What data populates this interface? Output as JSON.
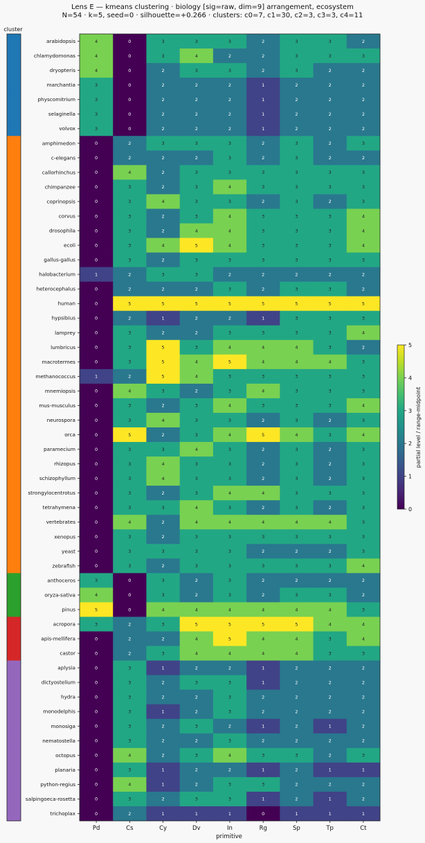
{
  "chart_data": {
    "type": "heatmap",
    "title": "Lens E — kmeans clustering · biology [sig=raw, dim=9] arrangement, ecosystem",
    "subtitle": "N=54 · k=5, seed=0 · silhouette=+0.266 · clusters: c0=7, c1=30, c2=3, c3=3, c4=11",
    "xlabel": "primitive",
    "cluster_label": "cluster",
    "colorbar_label": "partial level / range-midpoint",
    "colorbar_ticks": [
      0,
      1,
      2,
      3,
      4,
      5
    ],
    "vmin": 0,
    "vmax": 5,
    "columns": [
      "Pd",
      "Cs",
      "Cy",
      "Dv",
      "In",
      "Rg",
      "Sp",
      "Tp",
      "Ct"
    ],
    "cluster_colors": [
      "#1f77b4",
      "#ff7f0e",
      "#2ca02c",
      "#d62728",
      "#9467bd"
    ],
    "rows": [
      {
        "name": "arabidopsis",
        "cluster": 0,
        "values": [
          4,
          0,
          3,
          3,
          3,
          2,
          3,
          3,
          2
        ]
      },
      {
        "name": "chlamydomonas",
        "cluster": 0,
        "values": [
          4,
          0,
          3,
          4,
          2,
          2,
          3,
          3,
          3
        ]
      },
      {
        "name": "dryopteris",
        "cluster": 0,
        "values": [
          4,
          0,
          2,
          3,
          3,
          2,
          3,
          2,
          2
        ]
      },
      {
        "name": "marchantia",
        "cluster": 0,
        "values": [
          3,
          0,
          2,
          2,
          2,
          1,
          2,
          2,
          2
        ]
      },
      {
        "name": "physcomitrium",
        "cluster": 0,
        "values": [
          3,
          0,
          2,
          2,
          2,
          1,
          2,
          2,
          2
        ]
      },
      {
        "name": "selaginella",
        "cluster": 0,
        "values": [
          3,
          0,
          2,
          2,
          2,
          1,
          2,
          2,
          2
        ]
      },
      {
        "name": "volvox",
        "cluster": 0,
        "values": [
          3,
          0,
          2,
          2,
          2,
          1,
          2,
          2,
          2
        ]
      },
      {
        "name": "amphimedon",
        "cluster": 1,
        "values": [
          0,
          2,
          3,
          3,
          3,
          2,
          3,
          2,
          3
        ]
      },
      {
        "name": "c-elegans",
        "cluster": 1,
        "values": [
          0,
          2,
          2,
          2,
          3,
          2,
          3,
          2,
          2
        ]
      },
      {
        "name": "callorhinchus",
        "cluster": 1,
        "values": [
          0,
          4,
          2,
          3,
          3,
          3,
          3,
          3,
          3
        ]
      },
      {
        "name": "chimpanzee",
        "cluster": 1,
        "values": [
          0,
          3,
          2,
          3,
          4,
          3,
          3,
          3,
          3
        ]
      },
      {
        "name": "coprinopsis",
        "cluster": 1,
        "values": [
          0,
          3,
          4,
          3,
          3,
          2,
          3,
          2,
          3
        ]
      },
      {
        "name": "corvus",
        "cluster": 1,
        "values": [
          0,
          3,
          2,
          3,
          4,
          3,
          3,
          3,
          4
        ]
      },
      {
        "name": "drosophila",
        "cluster": 1,
        "values": [
          0,
          3,
          2,
          4,
          4,
          3,
          3,
          3,
          4
        ]
      },
      {
        "name": "ecoli",
        "cluster": 1,
        "values": [
          0,
          3,
          4,
          5,
          4,
          3,
          3,
          3,
          4
        ]
      },
      {
        "name": "gallus-gallus",
        "cluster": 1,
        "values": [
          0,
          3,
          2,
          3,
          3,
          3,
          3,
          3,
          3
        ]
      },
      {
        "name": "halobacterium",
        "cluster": 1,
        "values": [
          1,
          2,
          3,
          3,
          2,
          2,
          2,
          2,
          2
        ]
      },
      {
        "name": "heterocephalus",
        "cluster": 1,
        "values": [
          0,
          2,
          2,
          2,
          3,
          2,
          3,
          3,
          2
        ]
      },
      {
        "name": "human",
        "cluster": 1,
        "values": [
          0,
          5,
          5,
          5,
          5,
          5,
          5,
          5,
          5
        ]
      },
      {
        "name": "hypsibius",
        "cluster": 1,
        "values": [
          0,
          2,
          1,
          2,
          2,
          1,
          3,
          3,
          3
        ]
      },
      {
        "name": "lamprey",
        "cluster": 1,
        "values": [
          0,
          3,
          2,
          2,
          3,
          3,
          3,
          3,
          4
        ]
      },
      {
        "name": "lumbricus",
        "cluster": 1,
        "values": [
          0,
          3,
          5,
          3,
          4,
          4,
          4,
          3,
          2
        ]
      },
      {
        "name": "macrotermes",
        "cluster": 1,
        "values": [
          0,
          3,
          5,
          4,
          5,
          4,
          4,
          4,
          3
        ]
      },
      {
        "name": "methanococcus",
        "cluster": 1,
        "values": [
          1,
          2,
          5,
          4,
          3,
          3,
          3,
          3,
          3
        ]
      },
      {
        "name": "mnemiopsis",
        "cluster": 1,
        "values": [
          0,
          4,
          3,
          2,
          3,
          4,
          3,
          3,
          3
        ]
      },
      {
        "name": "mus-musculus",
        "cluster": 1,
        "values": [
          0,
          3,
          2,
          3,
          4,
          3,
          3,
          3,
          4
        ]
      },
      {
        "name": "neurospora",
        "cluster": 1,
        "values": [
          0,
          3,
          4,
          3,
          3,
          2,
          3,
          2,
          3
        ]
      },
      {
        "name": "orca",
        "cluster": 1,
        "values": [
          0,
          5,
          2,
          3,
          4,
          5,
          4,
          3,
          4
        ]
      },
      {
        "name": "paramecium",
        "cluster": 1,
        "values": [
          0,
          3,
          3,
          4,
          3,
          2,
          3,
          2,
          3
        ]
      },
      {
        "name": "rhizopus",
        "cluster": 1,
        "values": [
          0,
          3,
          4,
          3,
          3,
          2,
          3,
          2,
          3
        ]
      },
      {
        "name": "schizophyllum",
        "cluster": 1,
        "values": [
          0,
          3,
          4,
          3,
          3,
          2,
          3,
          2,
          3
        ]
      },
      {
        "name": "strongylocentrotus",
        "cluster": 1,
        "values": [
          0,
          3,
          2,
          3,
          4,
          4,
          3,
          3,
          3
        ]
      },
      {
        "name": "tetrahymena",
        "cluster": 1,
        "values": [
          0,
          3,
          3,
          4,
          3,
          2,
          3,
          2,
          3
        ]
      },
      {
        "name": "vertebrates",
        "cluster": 1,
        "values": [
          0,
          4,
          2,
          4,
          4,
          4,
          4,
          4,
          3
        ]
      },
      {
        "name": "xenopus",
        "cluster": 1,
        "values": [
          0,
          3,
          2,
          3,
          3,
          3,
          3,
          3,
          3
        ]
      },
      {
        "name": "yeast",
        "cluster": 1,
        "values": [
          0,
          3,
          3,
          3,
          3,
          2,
          2,
          2,
          3
        ]
      },
      {
        "name": "zebrafish",
        "cluster": 1,
        "values": [
          0,
          3,
          2,
          3,
          3,
          3,
          3,
          3,
          4
        ]
      },
      {
        "name": "anthoceros",
        "cluster": 2,
        "values": [
          3,
          0,
          3,
          2,
          3,
          2,
          2,
          2,
          2
        ]
      },
      {
        "name": "oryza-sativa",
        "cluster": 2,
        "values": [
          4,
          0,
          3,
          2,
          3,
          2,
          3,
          3,
          2
        ]
      },
      {
        "name": "pinus",
        "cluster": 2,
        "values": [
          5,
          0,
          4,
          4,
          4,
          4,
          4,
          4,
          3
        ]
      },
      {
        "name": "acropora",
        "cluster": 3,
        "values": [
          3,
          2,
          3,
          5,
          5,
          5,
          5,
          4,
          4
        ]
      },
      {
        "name": "apis-mellifera",
        "cluster": 3,
        "values": [
          0,
          2,
          2,
          4,
          5,
          4,
          4,
          3,
          4
        ]
      },
      {
        "name": "castor",
        "cluster": 3,
        "values": [
          0,
          2,
          3,
          4,
          4,
          4,
          4,
          3,
          3
        ]
      },
      {
        "name": "aplysia",
        "cluster": 4,
        "values": [
          0,
          3,
          1,
          2,
          2,
          1,
          2,
          2,
          2
        ]
      },
      {
        "name": "dictyostelium",
        "cluster": 4,
        "values": [
          0,
          3,
          2,
          3,
          3,
          1,
          2,
          2,
          2
        ]
      },
      {
        "name": "hydra",
        "cluster": 4,
        "values": [
          0,
          3,
          2,
          2,
          3,
          2,
          2,
          2,
          2
        ]
      },
      {
        "name": "monodelphis",
        "cluster": 4,
        "values": [
          0,
          3,
          1,
          2,
          3,
          2,
          2,
          2,
          2
        ]
      },
      {
        "name": "monosiga",
        "cluster": 4,
        "values": [
          0,
          3,
          2,
          3,
          2,
          1,
          2,
          1,
          2
        ]
      },
      {
        "name": "nematostella",
        "cluster": 4,
        "values": [
          0,
          3,
          2,
          2,
          3,
          2,
          2,
          2,
          2
        ]
      },
      {
        "name": "octopus",
        "cluster": 4,
        "values": [
          0,
          4,
          2,
          3,
          4,
          3,
          3,
          2,
          3
        ]
      },
      {
        "name": "planaria",
        "cluster": 4,
        "values": [
          0,
          3,
          1,
          2,
          2,
          1,
          2,
          1,
          1
        ]
      },
      {
        "name": "python-regius",
        "cluster": 4,
        "values": [
          0,
          4,
          1,
          2,
          3,
          3,
          2,
          2,
          2
        ]
      },
      {
        "name": "salpingoeca-rosetta",
        "cluster": 4,
        "values": [
          0,
          3,
          2,
          3,
          3,
          1,
          2,
          1,
          2
        ]
      },
      {
        "name": "trichoplax",
        "cluster": 4,
        "values": [
          0,
          2,
          1,
          1,
          1,
          0,
          1,
          1,
          1
        ]
      }
    ]
  }
}
